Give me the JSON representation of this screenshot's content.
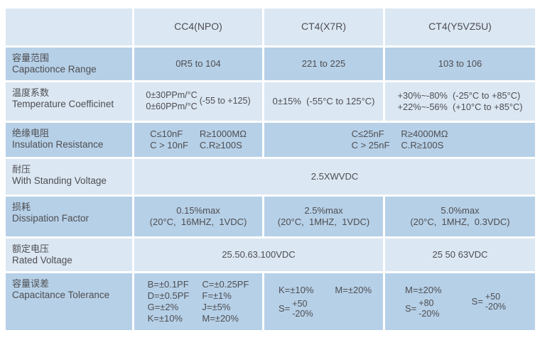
{
  "colors": {
    "cell_light": "#dbe7f3",
    "cell_dark": "#b6d0e7",
    "text": "#4e4e52",
    "background": "#ffffff"
  },
  "table": {
    "header": {
      "blank": "",
      "cc4": "CC4(NPO)",
      "x7r": "CT4(X7R)",
      "y5v": "CT4(Y5VZ5U)"
    },
    "rows": {
      "range": {
        "zh": "容量范围",
        "en": "Capactionce Range",
        "cc4": "0R5 to 104",
        "x7r": "221 to 225",
        "y5v": "103 to 106"
      },
      "temp": {
        "zh": "温度系数",
        "en": "Temperature Coefficinet",
        "cc4_ppm1": "0±30PPm/°C",
        "cc4_ppm2": "0±60PPm/°C",
        "cc4_range": "(-55 to +125)",
        "x7r": "0±15%  (-55°C to 125°C)",
        "y5v_line1": "+30%~-80%  (-25°C to +85°C)",
        "y5v_line2": "+22%~-56%  (+10°C to +85°C)"
      },
      "insulation": {
        "zh": "绝缘电阻",
        "en": "Insulation Resistance",
        "cc4_c1": "C≤10nF",
        "cc4_r1": "R≥1000MΩ",
        "cc4_c2": "C > 10nF",
        "cc4_r2": "C.R≥100S",
        "merged_c1": "C≤25nF",
        "merged_r1": "R≥4000MΩ",
        "merged_c2": "C > 25nF",
        "merged_r2": "C.R≥100S"
      },
      "withstanding": {
        "zh": "耐压",
        "en": "With Standing Voltage",
        "value": "2.5XWVDC"
      },
      "dissipation": {
        "zh": "损耗",
        "en": "Dissipation Factor",
        "cc4_max": "0.15%max",
        "cc4_cond": "(20°C,  16MHZ,  1VDC)",
        "x7r_max": "2.5%max",
        "x7r_cond": "(20°C,  1MHZ,  1VDC)",
        "y5v_max": "5.0%max",
        "y5v_cond": "(20°C,  1MHZ,  0.3VDC)"
      },
      "rated": {
        "zh": "额定电压",
        "en": "Rated Voltage",
        "cc4_x7r": "25.50.63.100VDC",
        "y5v": "25 50 63VDC"
      },
      "tolerance": {
        "zh": "容量误差",
        "en": "Capacitance Tolerance",
        "cc4_items": [
          "B=±0.1PF",
          "C=±0.25PF",
          "D=±0.5PF",
          "F=±1%",
          "G=±2%",
          "J=±5%",
          "K=±10%",
          "M=±20%"
        ],
        "x7r_k": "K=±10%",
        "x7r_m": "M=±20%",
        "x7r_s": {
          "prefix": "S=",
          "top": "+50",
          "bottom": "-20%"
        },
        "y5v_m": "M=±20%",
        "y5v_s1": {
          "prefix": "S=",
          "top": "+80",
          "bottom": "-20%"
        },
        "y5v_s2": {
          "prefix": "S=",
          "top": "+50",
          "bottom": "-20%"
        }
      }
    }
  }
}
